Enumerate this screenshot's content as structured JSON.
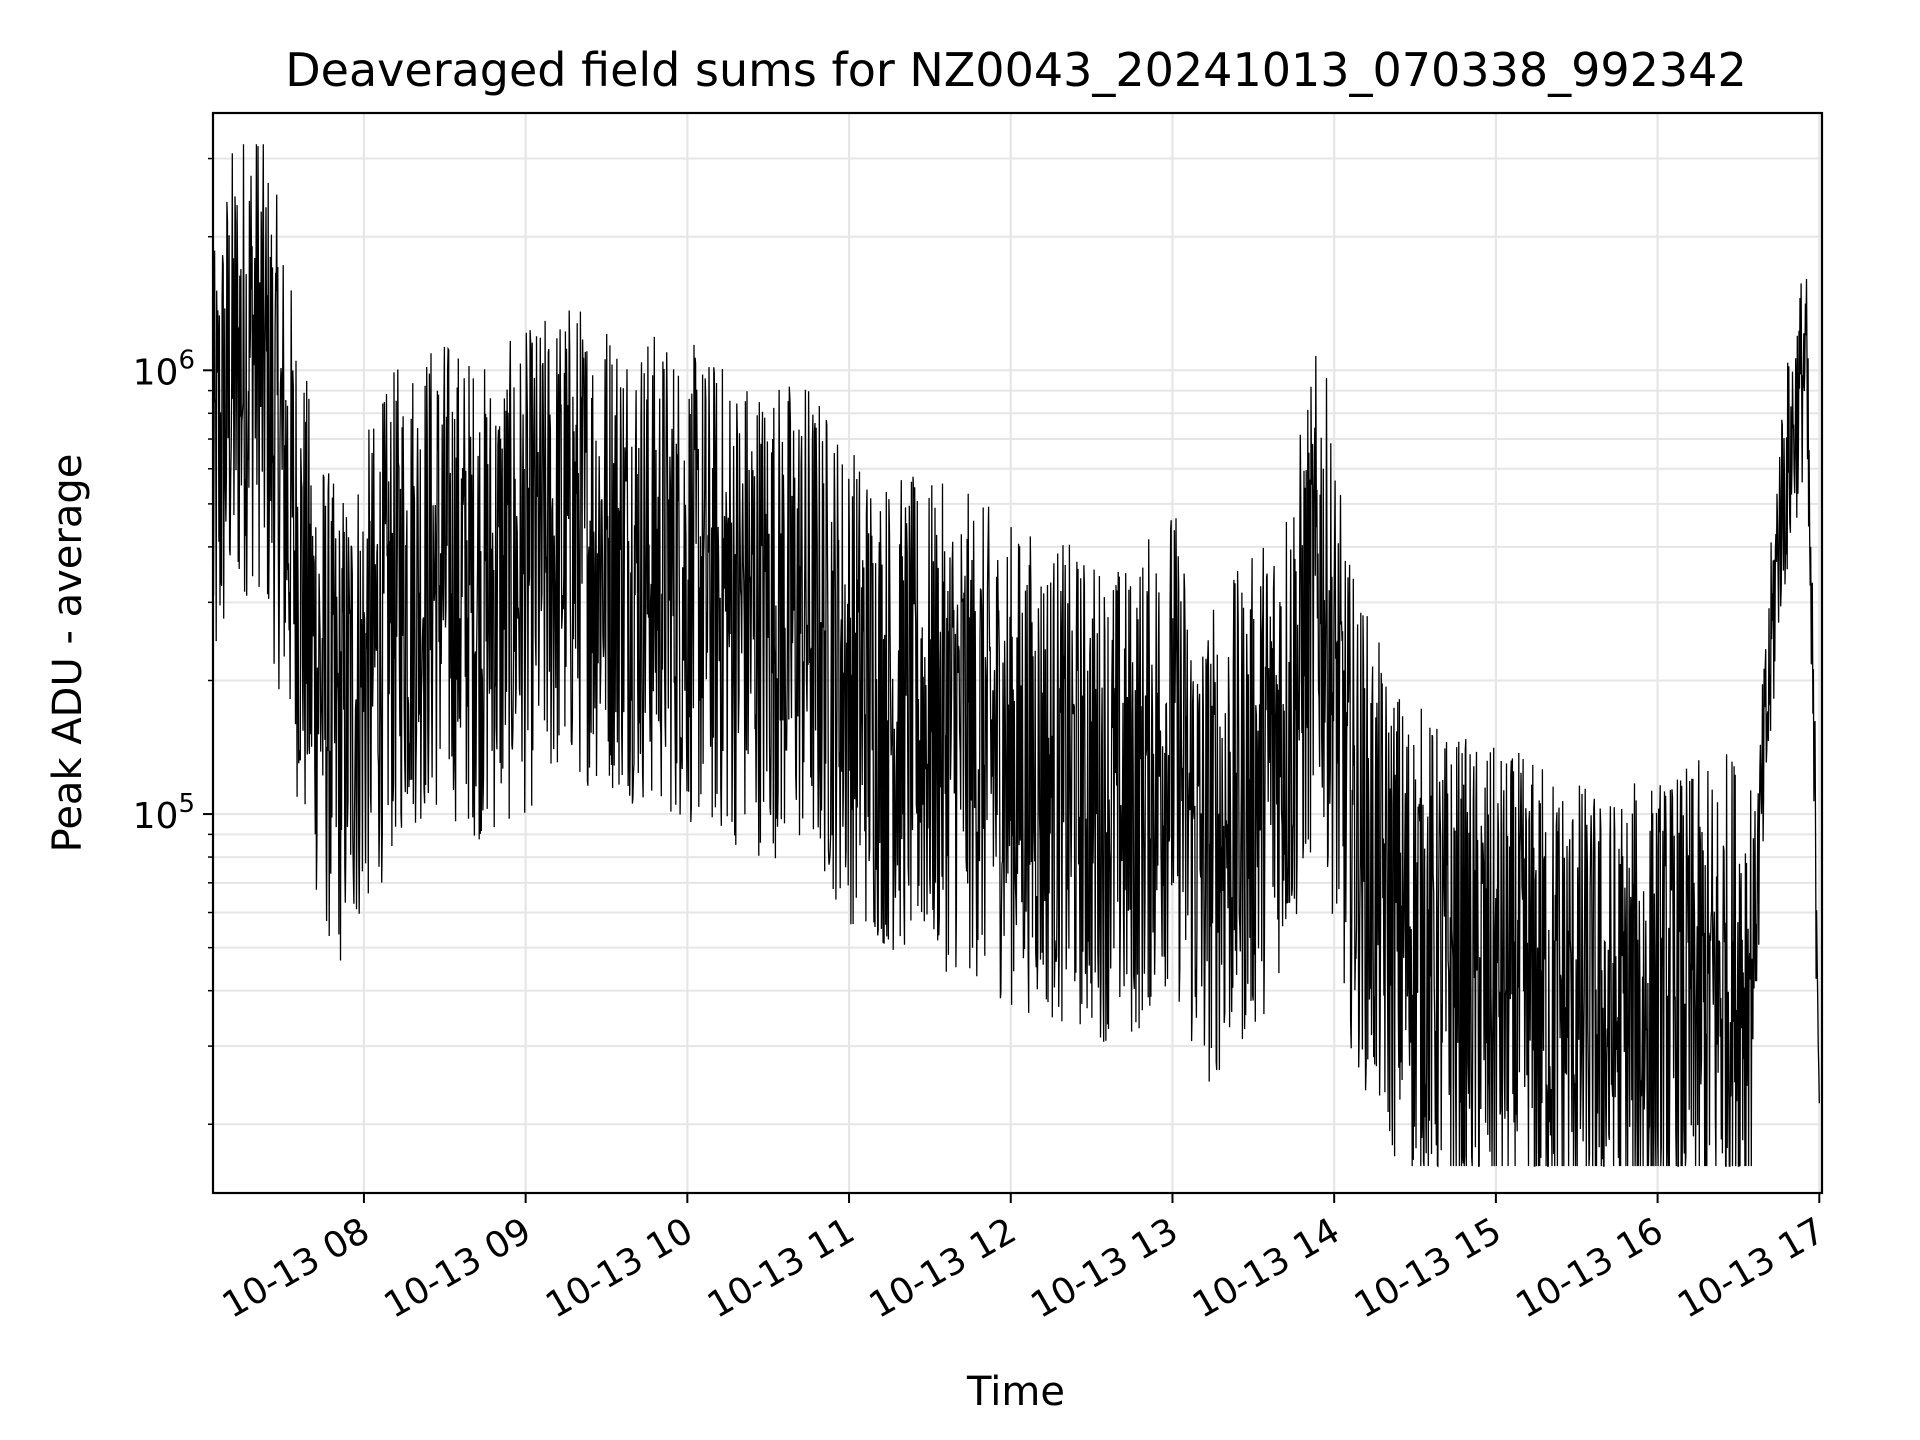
{
  "chart_data": {
    "type": "line",
    "title": "Deaveraged field sums for NZ0043_20241013_070338_992342",
    "xlabel": "Time",
    "ylabel": "Peak ADU - average",
    "yscale": "log",
    "ylim": [
      14000,
      3800000
    ],
    "xlim": [
      "2024-10-13 07:04",
      "2024-10-13 17:01"
    ],
    "grid": true,
    "line_color": "#000000",
    "x_ticks": [
      "10-13 08",
      "10-13 09",
      "10-13 10",
      "10-13 11",
      "10-13 12",
      "10-13 13",
      "10-13 14",
      "10-13 15",
      "10-13 16",
      "10-13 17"
    ],
    "y_ticks": [
      {
        "base": "10",
        "exp": "5",
        "value": 100000
      },
      {
        "base": "10",
        "exp": "6",
        "value": 1000000
      }
    ],
    "series": [
      {
        "x": [
          "2024-10-13 07:04",
          "2024-10-13 07:10",
          "2024-10-13 07:20",
          "2024-10-13 07:30",
          "2024-10-13 07:40",
          "2024-10-13 07:50",
          "2024-10-13 08:00",
          "2024-10-13 08:15",
          "2024-10-13 08:30",
          "2024-10-13 08:45",
          "2024-10-13 09:00",
          "2024-10-13 09:15",
          "2024-10-13 09:30",
          "2024-10-13 09:45",
          "2024-10-13 10:00",
          "2024-10-13 10:15",
          "2024-10-13 10:30",
          "2024-10-13 10:45",
          "2024-10-13 11:00",
          "2024-10-13 11:15",
          "2024-10-13 11:30",
          "2024-10-13 11:45",
          "2024-10-13 12:00",
          "2024-10-13 12:15",
          "2024-10-13 12:30",
          "2024-10-13 12:45",
          "2024-10-13 13:00",
          "2024-10-13 13:10",
          "2024-10-13 13:30",
          "2024-10-13 13:45",
          "2024-10-13 13:55",
          "2024-10-13 14:05",
          "2024-10-13 14:20",
          "2024-10-13 14:40",
          "2024-10-13 15:00",
          "2024-10-13 15:20",
          "2024-10-13 15:40",
          "2024-10-13 16:00",
          "2024-10-13 16:20",
          "2024-10-13 16:35",
          "2024-10-13 16:45",
          "2024-10-13 16:55",
          "2024-10-13 17:00"
        ],
        "y": [
          500000,
          900000,
          1200000,
          600000,
          250000,
          150000,
          200000,
          320000,
          350000,
          300000,
          350000,
          420000,
          400000,
          360000,
          330000,
          300000,
          280000,
          280000,
          200000,
          170000,
          160000,
          150000,
          130000,
          120000,
          110000,
          105000,
          150000,
          80000,
          110000,
          180000,
          350000,
          110000,
          60000,
          45000,
          40000,
          38000,
          32000,
          35000,
          38000,
          45000,
          450000,
          1100000,
          32000
        ]
      }
    ]
  }
}
